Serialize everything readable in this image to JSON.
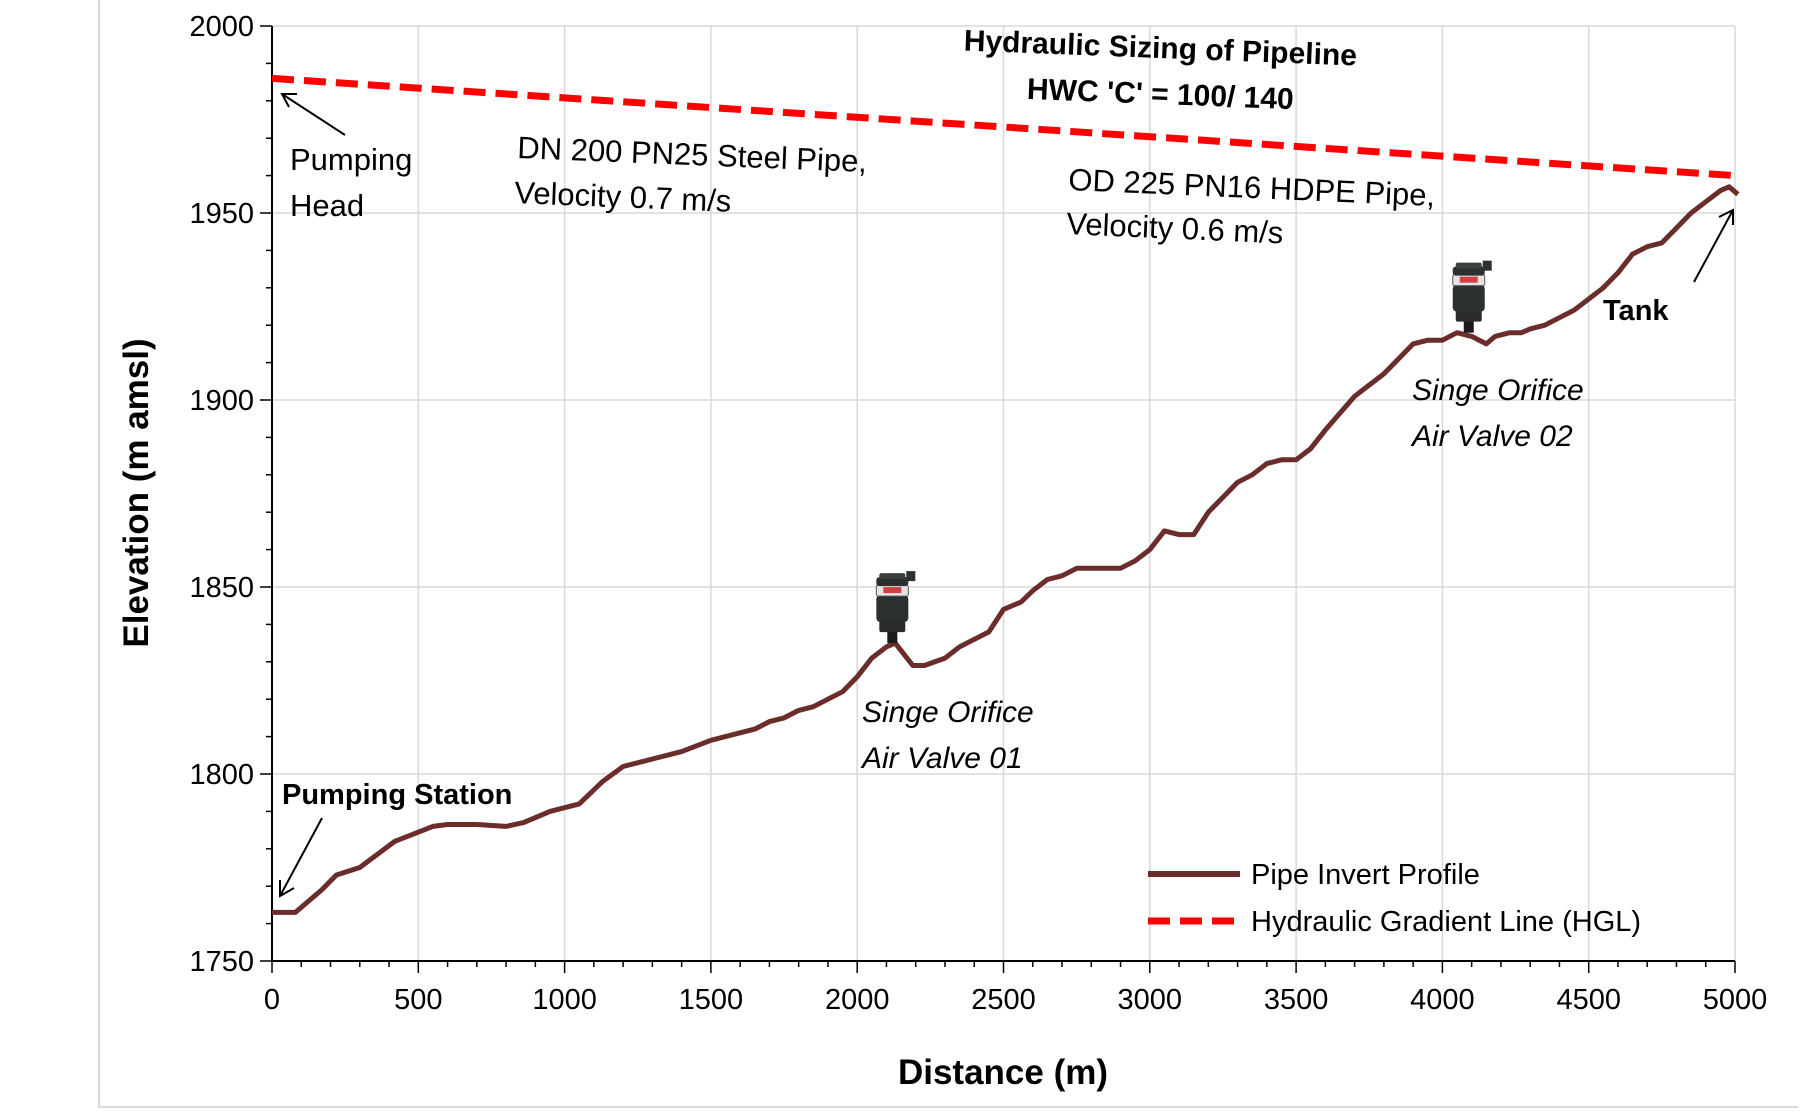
{
  "chart_data": {
    "type": "line",
    "title": "Hydraulic Sizing of Pipeline",
    "subtitle": "HWC 'C' = 100/ 140",
    "xlabel": "Distance (m)",
    "ylabel": "Elevation (m amsl)",
    "xlim": [
      0,
      5000
    ],
    "ylim": [
      1750,
      2000
    ],
    "xticks": [
      "0",
      "500",
      "1000",
      "1500",
      "2000",
      "2500",
      "3000",
      "3500",
      "4000",
      "4500",
      "5000"
    ],
    "yticks": [
      "1750",
      "1800",
      "1850",
      "1900",
      "1950",
      "2000"
    ],
    "grid": true,
    "legend_position": "bottom-right",
    "series": [
      {
        "name": "Pipe Invert Profile",
        "color": "#6b2c2c",
        "style": "solid",
        "x": [
          0,
          80,
          170,
          220,
          300,
          420,
          550,
          600,
          700,
          800,
          860,
          950,
          1050,
          1130,
          1200,
          1300,
          1400,
          1500,
          1550,
          1650,
          1700,
          1750,
          1800,
          1850,
          1900,
          1950,
          2000,
          2050,
          2100,
          2130,
          2160,
          2190,
          2230,
          2300,
          2350,
          2450,
          2500,
          2560,
          2600,
          2650,
          2700,
          2750,
          2800,
          2900,
          2950,
          3000,
          3050,
          3100,
          3150,
          3200,
          3250,
          3300,
          3350,
          3400,
          3450,
          3500,
          3550,
          3600,
          3700,
          3750,
          3800,
          3850,
          3900,
          3950,
          4000,
          4050,
          4100,
          4150,
          4180,
          4230,
          4270,
          4300,
          4350,
          4400,
          4450,
          4500,
          4550,
          4600,
          4650,
          4700,
          4750,
          4800,
          4850,
          4900,
          4950,
          4980,
          5010
        ],
        "y": [
          1763,
          1763,
          1769,
          1773,
          1775,
          1782,
          1786,
          1786.5,
          1786.5,
          1786,
          1787,
          1790,
          1792,
          1798,
          1802,
          1804,
          1806,
          1809,
          1810,
          1812,
          1814,
          1815,
          1817,
          1818,
          1820,
          1822,
          1826,
          1831,
          1834,
          1835,
          1832,
          1829,
          1829,
          1831,
          1834,
          1838,
          1844,
          1846,
          1849,
          1852,
          1853,
          1855,
          1855,
          1855,
          1857,
          1860,
          1865,
          1864,
          1864,
          1870,
          1874,
          1878,
          1880,
          1883,
          1884,
          1884,
          1887,
          1892,
          1901,
          1904,
          1907,
          1911,
          1915,
          1916,
          1916,
          1918,
          1917,
          1915,
          1917,
          1918,
          1918,
          1919,
          1920,
          1922,
          1924,
          1927,
          1930,
          1934,
          1939,
          1941,
          1942,
          1946,
          1950,
          1953,
          1956,
          1957,
          1955
        ]
      },
      {
        "name": "Hydraulic Gradient Line (HGL)",
        "color": "#ff0000",
        "style": "dashed",
        "x": [
          0,
          5000
        ],
        "y": [
          1986,
          1960
        ]
      }
    ],
    "annotations": {
      "pumping_head": [
        "Pumping",
        "Head"
      ],
      "pumping_station": "Pumping Station",
      "tank": "Tank",
      "steel_pipe": [
        "DN 200 PN25 Steel Pipe,",
        "Velocity 0.7 m/s"
      ],
      "hdpe_pipe": [
        "OD 225 PN16 HDPE Pipe,",
        "Velocity 0.6 m/s"
      ],
      "air_valve_01": [
        "Singe Orifice",
        "Air Valve 01"
      ],
      "air_valve_02": [
        "Singe Orifice",
        "Air Valve 02"
      ]
    },
    "air_valves": [
      {
        "x": 2120,
        "y": 1835
      },
      {
        "x": 4090,
        "y": 1918
      }
    ]
  }
}
